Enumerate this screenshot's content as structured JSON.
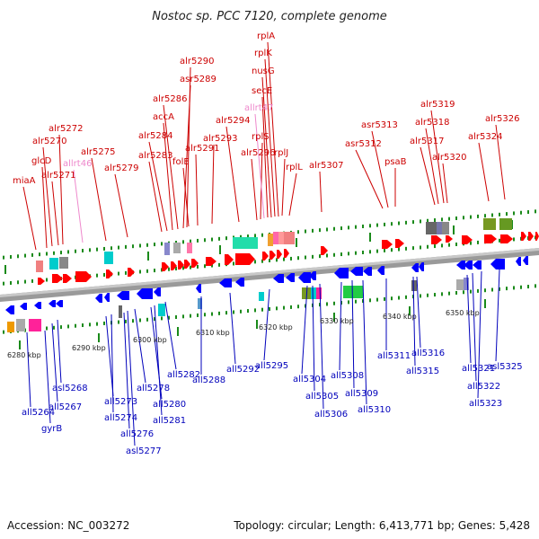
{
  "title": "Nostoc sp. PCC 7120, complete genome",
  "accession_text": "Accession: NC_003272",
  "topology_text": "Topology: circular; Length: 6,413,771 bp; Genes: 5,428",
  "colors": {
    "forward_label": "#cc0000",
    "forward_label_rna": "#ee88cc",
    "reverse_label": "#0000bb",
    "forward_gene": "#ff0000",
    "reverse_gene": "#0000ff",
    "backbone": "#888888",
    "tick": "#1a8a1a"
  },
  "ticks": [
    {
      "label": "6280 kbp"
    },
    {
      "label": "6290 kbp"
    },
    {
      "label": "6300 kbp"
    },
    {
      "label": "6310 kbp"
    },
    {
      "label": "6320 kbp"
    },
    {
      "label": "6330 kbp"
    },
    {
      "label": "6340 kbp"
    },
    {
      "label": "6350 kbp"
    }
  ],
  "forward_labels": [
    {
      "text": "miaA"
    },
    {
      "text": "glcD"
    },
    {
      "text": "alr5270"
    },
    {
      "text": "alr5271"
    },
    {
      "text": "alr5272"
    },
    {
      "text": "allrt46",
      "rna": true
    },
    {
      "text": "alr5275"
    },
    {
      "text": "alr5279"
    },
    {
      "text": "alr5283"
    },
    {
      "text": "alr5284"
    },
    {
      "text": "accA"
    },
    {
      "text": "alr5286"
    },
    {
      "text": "asr5289"
    },
    {
      "text": "alr5290"
    },
    {
      "text": "folE"
    },
    {
      "text": "alr5291"
    },
    {
      "text": "alr5293"
    },
    {
      "text": "alr5294"
    },
    {
      "text": "alr5296"
    },
    {
      "text": "rplS"
    },
    {
      "text": "allrt47",
      "rna": true
    },
    {
      "text": "secE"
    },
    {
      "text": "nusG"
    },
    {
      "text": "rplK"
    },
    {
      "text": "rplA"
    },
    {
      "text": "rplJ"
    },
    {
      "text": "rplL"
    },
    {
      "text": "alr5307"
    },
    {
      "text": "asr5312"
    },
    {
      "text": "asr5313"
    },
    {
      "text": "psaB"
    },
    {
      "text": "alr5317"
    },
    {
      "text": "alr5318"
    },
    {
      "text": "alr5319"
    },
    {
      "text": "alr5320"
    },
    {
      "text": "alr5324"
    },
    {
      "text": "alr5326"
    }
  ],
  "reverse_labels": [
    {
      "text": "all5264"
    },
    {
      "text": "gyrB"
    },
    {
      "text": "all5267"
    },
    {
      "text": "asl5268"
    },
    {
      "text": "all5273"
    },
    {
      "text": "all5274"
    },
    {
      "text": "all5276"
    },
    {
      "text": "asl5277"
    },
    {
      "text": "all5278"
    },
    {
      "text": "all5280"
    },
    {
      "text": "all5281"
    },
    {
      "text": "all5282"
    },
    {
      "text": "all5288"
    },
    {
      "text": "all5292"
    },
    {
      "text": "all5295"
    },
    {
      "text": "all5304"
    },
    {
      "text": "all5305"
    },
    {
      "text": "all5306"
    },
    {
      "text": "all5308"
    },
    {
      "text": "all5309"
    },
    {
      "text": "all5310"
    },
    {
      "text": "all5311"
    },
    {
      "text": "all5315"
    },
    {
      "text": "all5316"
    },
    {
      "text": "all5321"
    },
    {
      "text": "all5322"
    },
    {
      "text": "all5323"
    },
    {
      "text": "asl5325"
    }
  ]
}
